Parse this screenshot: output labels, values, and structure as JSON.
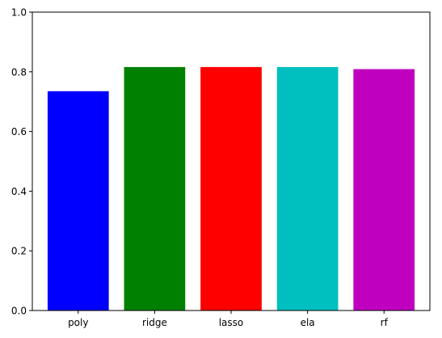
{
  "chart_data": {
    "type": "bar",
    "title": "",
    "xlabel": "",
    "ylabel": "",
    "categories": [
      "poly",
      "ridge",
      "lasso",
      "ela",
      "rf"
    ],
    "values": [
      0.735,
      0.816,
      0.816,
      0.816,
      0.809
    ],
    "colors": [
      "#0000ff",
      "#008000",
      "#ff0000",
      "#00bfbf",
      "#bf00bf"
    ],
    "ylim": [
      0,
      1.0
    ],
    "yticks": [
      0.0,
      0.2,
      0.4,
      0.6,
      0.8,
      1.0
    ],
    "ytick_labels": [
      "0.0",
      "0.2",
      "0.4",
      "0.6",
      "0.8",
      "1.0"
    ],
    "grid": false,
    "legend": "none"
  }
}
